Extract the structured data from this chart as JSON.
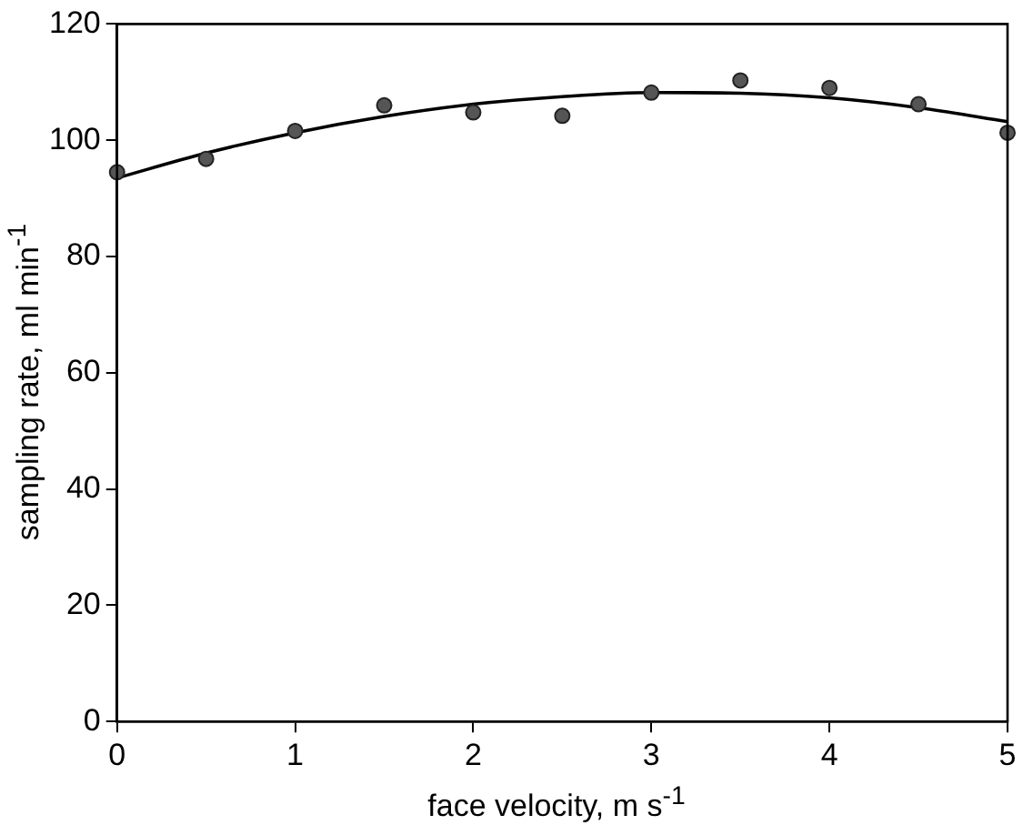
{
  "chart_data": {
    "type": "scatter",
    "xlabel": "face velocity, m s$^{-1}$",
    "ylabel": "sampling rate, ml min$^{-1}$",
    "xlim": [
      0,
      5
    ],
    "xticks": [
      0,
      1,
      2,
      3,
      4,
      5
    ],
    "ylim": [
      0,
      120
    ],
    "yticks": [
      0,
      20,
      40,
      60,
      80,
      100,
      120
    ],
    "grid": false,
    "legend": false,
    "marker": "circle",
    "series": [
      {
        "color": "#555555",
        "x": [
          0,
          0.5,
          1,
          1.5,
          2,
          2.5,
          3,
          3.5,
          4,
          4.5,
          5
        ],
        "values": [
          94.5,
          96.8,
          101.6,
          106,
          104.8,
          104.2,
          108.2,
          110.3,
          109,
          106.2,
          101.3
        ]
      },
      {
        "type": "line",
        "color": "#000000",
        "marker": "none",
        "line_style": "solid",
        "x": [
          0,
          0.5,
          1,
          1.5,
          2,
          2.5,
          3,
          3.5,
          4,
          4.5,
          5
        ],
        "values": [
          93.5,
          97.8,
          101.3,
          104.1,
          106.2,
          107.5,
          108.2,
          108.1,
          107.3,
          105.6,
          103.2
        ]
      }
    ]
  }
}
